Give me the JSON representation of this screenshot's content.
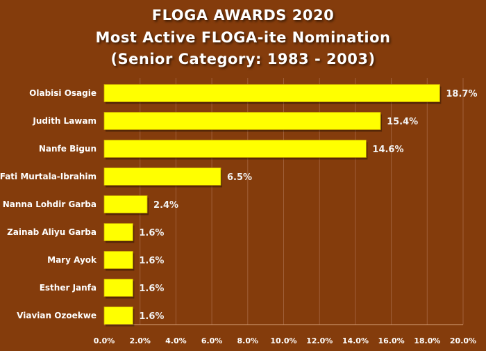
{
  "chart_data": {
    "type": "bar",
    "orientation": "horizontal",
    "title": [
      "FLOGA AWARDS 2020",
      "Most Active FLOGA-ite Nomination",
      "(Senior Category: 1983 - 2003)"
    ],
    "categories": [
      "Olabisi Osagie",
      "Judith Lawam",
      "Nanfe Bigun",
      "Fati Murtala-Ibrahim",
      "Nanna Lohdir Garba",
      "Zainab Aliyu Garba",
      "Mary Ayok",
      "Esther Janfa",
      "Viavian Ozoekwe"
    ],
    "values": [
      18.7,
      15.4,
      14.6,
      6.5,
      2.4,
      1.6,
      1.6,
      1.6,
      1.6
    ],
    "value_labels": [
      "18.7%",
      "15.4%",
      "14.6%",
      "6.5%",
      "2.4%",
      "1.6%",
      "1.6%",
      "1.6%",
      "1.6%"
    ],
    "xlim": [
      0,
      20
    ],
    "xticks": [
      "0.0%",
      "2.0%",
      "4.0%",
      "6.0%",
      "8.0%",
      "10.0%",
      "12.0%",
      "14.0%",
      "16.0%",
      "18.0%",
      "20.0%"
    ],
    "xlabel": "",
    "ylabel": "",
    "grid": true,
    "legend": "none",
    "colors": {
      "background": "#843c0c",
      "bar": "#ffff00",
      "bar_edge": "#c9a400",
      "grid": "#a0603a"
    }
  }
}
